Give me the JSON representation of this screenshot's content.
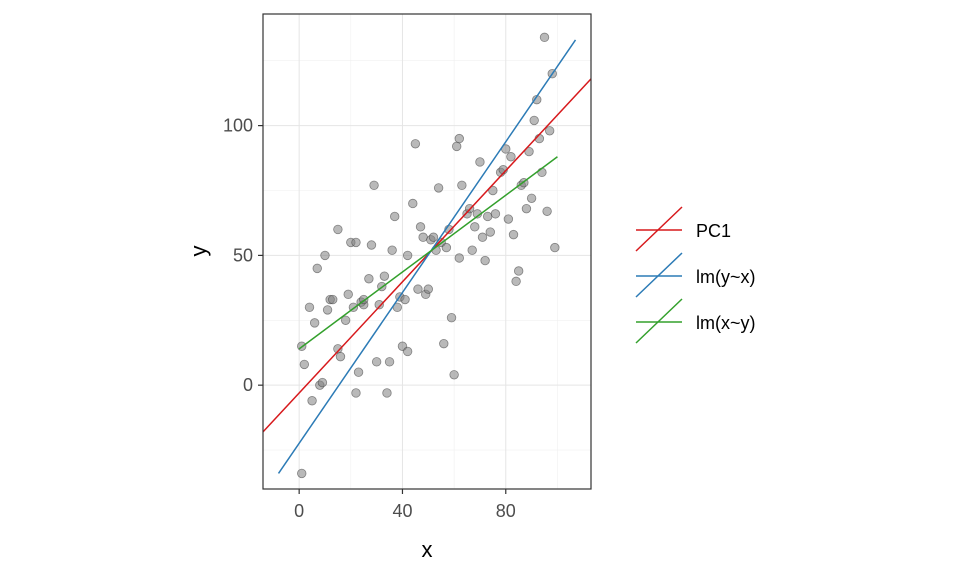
{
  "chart_data": {
    "type": "scatter",
    "xlabel": "x",
    "ylabel": "y",
    "xlim": [
      -14,
      113
    ],
    "ylim": [
      -40,
      143
    ],
    "x_ticks": [
      0,
      40,
      80
    ],
    "y_ticks": [
      0,
      50,
      100
    ],
    "x_tick_labels": [
      "0",
      "40",
      "80"
    ],
    "y_tick_labels": [
      "0",
      "50",
      "100"
    ],
    "grid": true,
    "legend_position": "right",
    "point_color": "#808080",
    "points": [
      [
        1,
        -34
      ],
      [
        1,
        15
      ],
      [
        2,
        8
      ],
      [
        4,
        30
      ],
      [
        5,
        -6
      ],
      [
        6,
        24
      ],
      [
        7,
        45
      ],
      [
        8,
        0
      ],
      [
        9,
        1
      ],
      [
        10,
        50
      ],
      [
        11,
        29
      ],
      [
        12,
        33
      ],
      [
        13,
        33
      ],
      [
        15,
        14
      ],
      [
        15,
        60
      ],
      [
        16,
        11
      ],
      [
        18,
        25
      ],
      [
        19,
        35
      ],
      [
        20,
        55
      ],
      [
        21,
        30
      ],
      [
        22,
        -3
      ],
      [
        22,
        55
      ],
      [
        23,
        5
      ],
      [
        24,
        32
      ],
      [
        25,
        31
      ],
      [
        25,
        33
      ],
      [
        27,
        41
      ],
      [
        28,
        54
      ],
      [
        29,
        77
      ],
      [
        30,
        9
      ],
      [
        31,
        31
      ],
      [
        32,
        38
      ],
      [
        33,
        42
      ],
      [
        34,
        -3
      ],
      [
        35,
        9
      ],
      [
        36,
        52
      ],
      [
        37,
        65
      ],
      [
        38,
        30
      ],
      [
        39,
        34
      ],
      [
        40,
        15
      ],
      [
        41,
        33
      ],
      [
        42,
        50
      ],
      [
        42,
        13
      ],
      [
        44,
        70
      ],
      [
        45,
        93
      ],
      [
        46,
        37
      ],
      [
        47,
        61
      ],
      [
        48,
        57
      ],
      [
        49,
        35
      ],
      [
        50,
        37
      ],
      [
        51,
        56
      ],
      [
        52,
        57
      ],
      [
        53,
        52
      ],
      [
        54,
        76
      ],
      [
        55,
        55
      ],
      [
        56,
        16
      ],
      [
        57,
        53
      ],
      [
        58,
        60
      ],
      [
        59,
        26
      ],
      [
        60,
        4
      ],
      [
        61,
        92
      ],
      [
        62,
        49
      ],
      [
        62,
        95
      ],
      [
        63,
        77
      ],
      [
        65,
        66
      ],
      [
        66,
        68
      ],
      [
        67,
        52
      ],
      [
        68,
        61
      ],
      [
        69,
        66
      ],
      [
        70,
        86
      ],
      [
        71,
        57
      ],
      [
        72,
        48
      ],
      [
        73,
        65
      ],
      [
        74,
        59
      ],
      [
        75,
        75
      ],
      [
        76,
        66
      ],
      [
        78,
        82
      ],
      [
        79,
        83
      ],
      [
        80,
        91
      ],
      [
        81,
        64
      ],
      [
        82,
        88
      ],
      [
        83,
        58
      ],
      [
        84,
        40
      ],
      [
        85,
        44
      ],
      [
        86,
        77
      ],
      [
        87,
        78
      ],
      [
        88,
        68
      ],
      [
        89,
        90
      ],
      [
        90,
        72
      ],
      [
        91,
        102
      ],
      [
        92,
        110
      ],
      [
        93,
        95
      ],
      [
        94,
        82
      ],
      [
        95,
        134
      ],
      [
        96,
        67
      ],
      [
        97,
        98
      ],
      [
        98,
        120
      ],
      [
        99,
        53
      ]
    ],
    "series": [
      {
        "name": "PC1",
        "color": "#d7191c",
        "x": [
          -14,
          113
        ],
        "y": [
          -18,
          118
        ]
      },
      {
        "name": "lm(y~x)",
        "color": "#2c7bb6",
        "x": [
          -8,
          107
        ],
        "y": [
          -34,
          133
        ]
      },
      {
        "name": "lm(x~y)",
        "color": "#33a02c",
        "x": [
          0,
          100
        ],
        "y": [
          14,
          88
        ]
      }
    ]
  }
}
